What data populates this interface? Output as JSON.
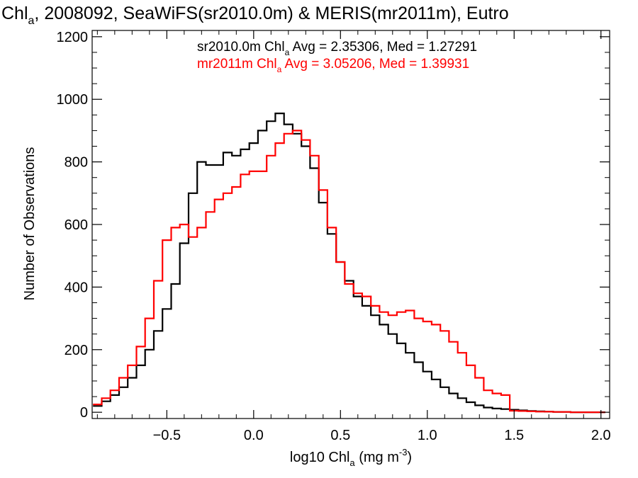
{
  "chart_data": {
    "type": "line",
    "step": true,
    "title_parts": [
      "Chl",
      "a",
      ", 2008092, SeaWiFS(sr2010.0m) & MERIS(mr2011m), Eutro"
    ],
    "xlabel_parts": [
      "log10 Chl",
      "a",
      " (mg m",
      "-3",
      ")"
    ],
    "ylabel": "Number of Observations",
    "xlim": [
      -0.93,
      2.05
    ],
    "ylim": [
      -20,
      1220
    ],
    "xticks": [
      -0.5,
      0.0,
      0.5,
      1.0,
      1.5,
      2.0
    ],
    "xtick_labels": [
      "−0.5",
      "0.0",
      "0.5",
      "1.0",
      "1.5",
      "2.0"
    ],
    "yticks": [
      0,
      200,
      400,
      600,
      800,
      1000,
      1200
    ],
    "ytick_labels": [
      "0",
      "200",
      "400",
      "600",
      "800",
      "1000",
      "1200"
    ],
    "grid": false,
    "legend_placement": "top-center",
    "series": [
      {
        "name": "sr2010.0m",
        "color": "#000000",
        "legend_parts": [
          "sr2010.0m Chl",
          "a",
          " Avg = 2.35306, Med = 1.27291"
        ],
        "x": [
          -0.9,
          -0.85,
          -0.8,
          -0.75,
          -0.7,
          -0.65,
          -0.6,
          -0.55,
          -0.5,
          -0.45,
          -0.4,
          -0.35,
          -0.3,
          -0.25,
          -0.2,
          -0.15,
          -0.1,
          -0.05,
          0.0,
          0.05,
          0.1,
          0.15,
          0.2,
          0.25,
          0.3,
          0.35,
          0.4,
          0.45,
          0.5,
          0.55,
          0.6,
          0.65,
          0.7,
          0.75,
          0.8,
          0.85,
          0.9,
          0.95,
          1.0,
          1.05,
          1.1,
          1.15,
          1.2,
          1.25,
          1.3,
          1.35,
          1.4,
          1.45,
          1.5,
          1.55,
          1.6,
          1.65,
          1.7,
          1.75,
          1.8,
          1.85,
          1.9,
          1.95,
          2.0
        ],
        "y": [
          20,
          35,
          55,
          80,
          110,
          150,
          200,
          260,
          330,
          410,
          540,
          700,
          800,
          790,
          790,
          830,
          820,
          840,
          860,
          900,
          930,
          955,
          920,
          890,
          850,
          780,
          670,
          570,
          480,
          420,
          370,
          340,
          310,
          280,
          250,
          220,
          190,
          160,
          130,
          105,
          80,
          60,
          45,
          32,
          22,
          15,
          12,
          10,
          8,
          6,
          4,
          3,
          2,
          1,
          1,
          0,
          0,
          0,
          0
        ]
      },
      {
        "name": "mr2011m",
        "color": "#ff0000",
        "legend_parts": [
          "mr2011m Chl",
          "a",
          " Avg = 3.05206, Med = 1.39931"
        ],
        "x": [
          -0.9,
          -0.85,
          -0.8,
          -0.75,
          -0.7,
          -0.65,
          -0.6,
          -0.55,
          -0.5,
          -0.45,
          -0.4,
          -0.35,
          -0.3,
          -0.25,
          -0.2,
          -0.15,
          -0.1,
          -0.05,
          0.0,
          0.05,
          0.1,
          0.15,
          0.2,
          0.25,
          0.3,
          0.35,
          0.4,
          0.45,
          0.5,
          0.55,
          0.6,
          0.65,
          0.7,
          0.75,
          0.8,
          0.85,
          0.9,
          0.95,
          1.0,
          1.05,
          1.1,
          1.15,
          1.2,
          1.25,
          1.3,
          1.35,
          1.4,
          1.45,
          1.5,
          1.55,
          1.6,
          1.65,
          1.7,
          1.75,
          1.8,
          1.85,
          1.9,
          1.95,
          2.0
        ],
        "y": [
          25,
          45,
          70,
          110,
          150,
          210,
          300,
          420,
          550,
          590,
          600,
          560,
          590,
          640,
          680,
          700,
          720,
          760,
          770,
          770,
          820,
          860,
          890,
          900,
          870,
          820,
          710,
          590,
          480,
          410,
          380,
          370,
          340,
          320,
          310,
          320,
          325,
          300,
          290,
          280,
          260,
          225,
          190,
          150,
          110,
          70,
          60,
          55,
          5,
          4,
          3,
          2,
          2,
          1,
          1,
          0,
          0,
          0,
          0
        ]
      }
    ]
  }
}
